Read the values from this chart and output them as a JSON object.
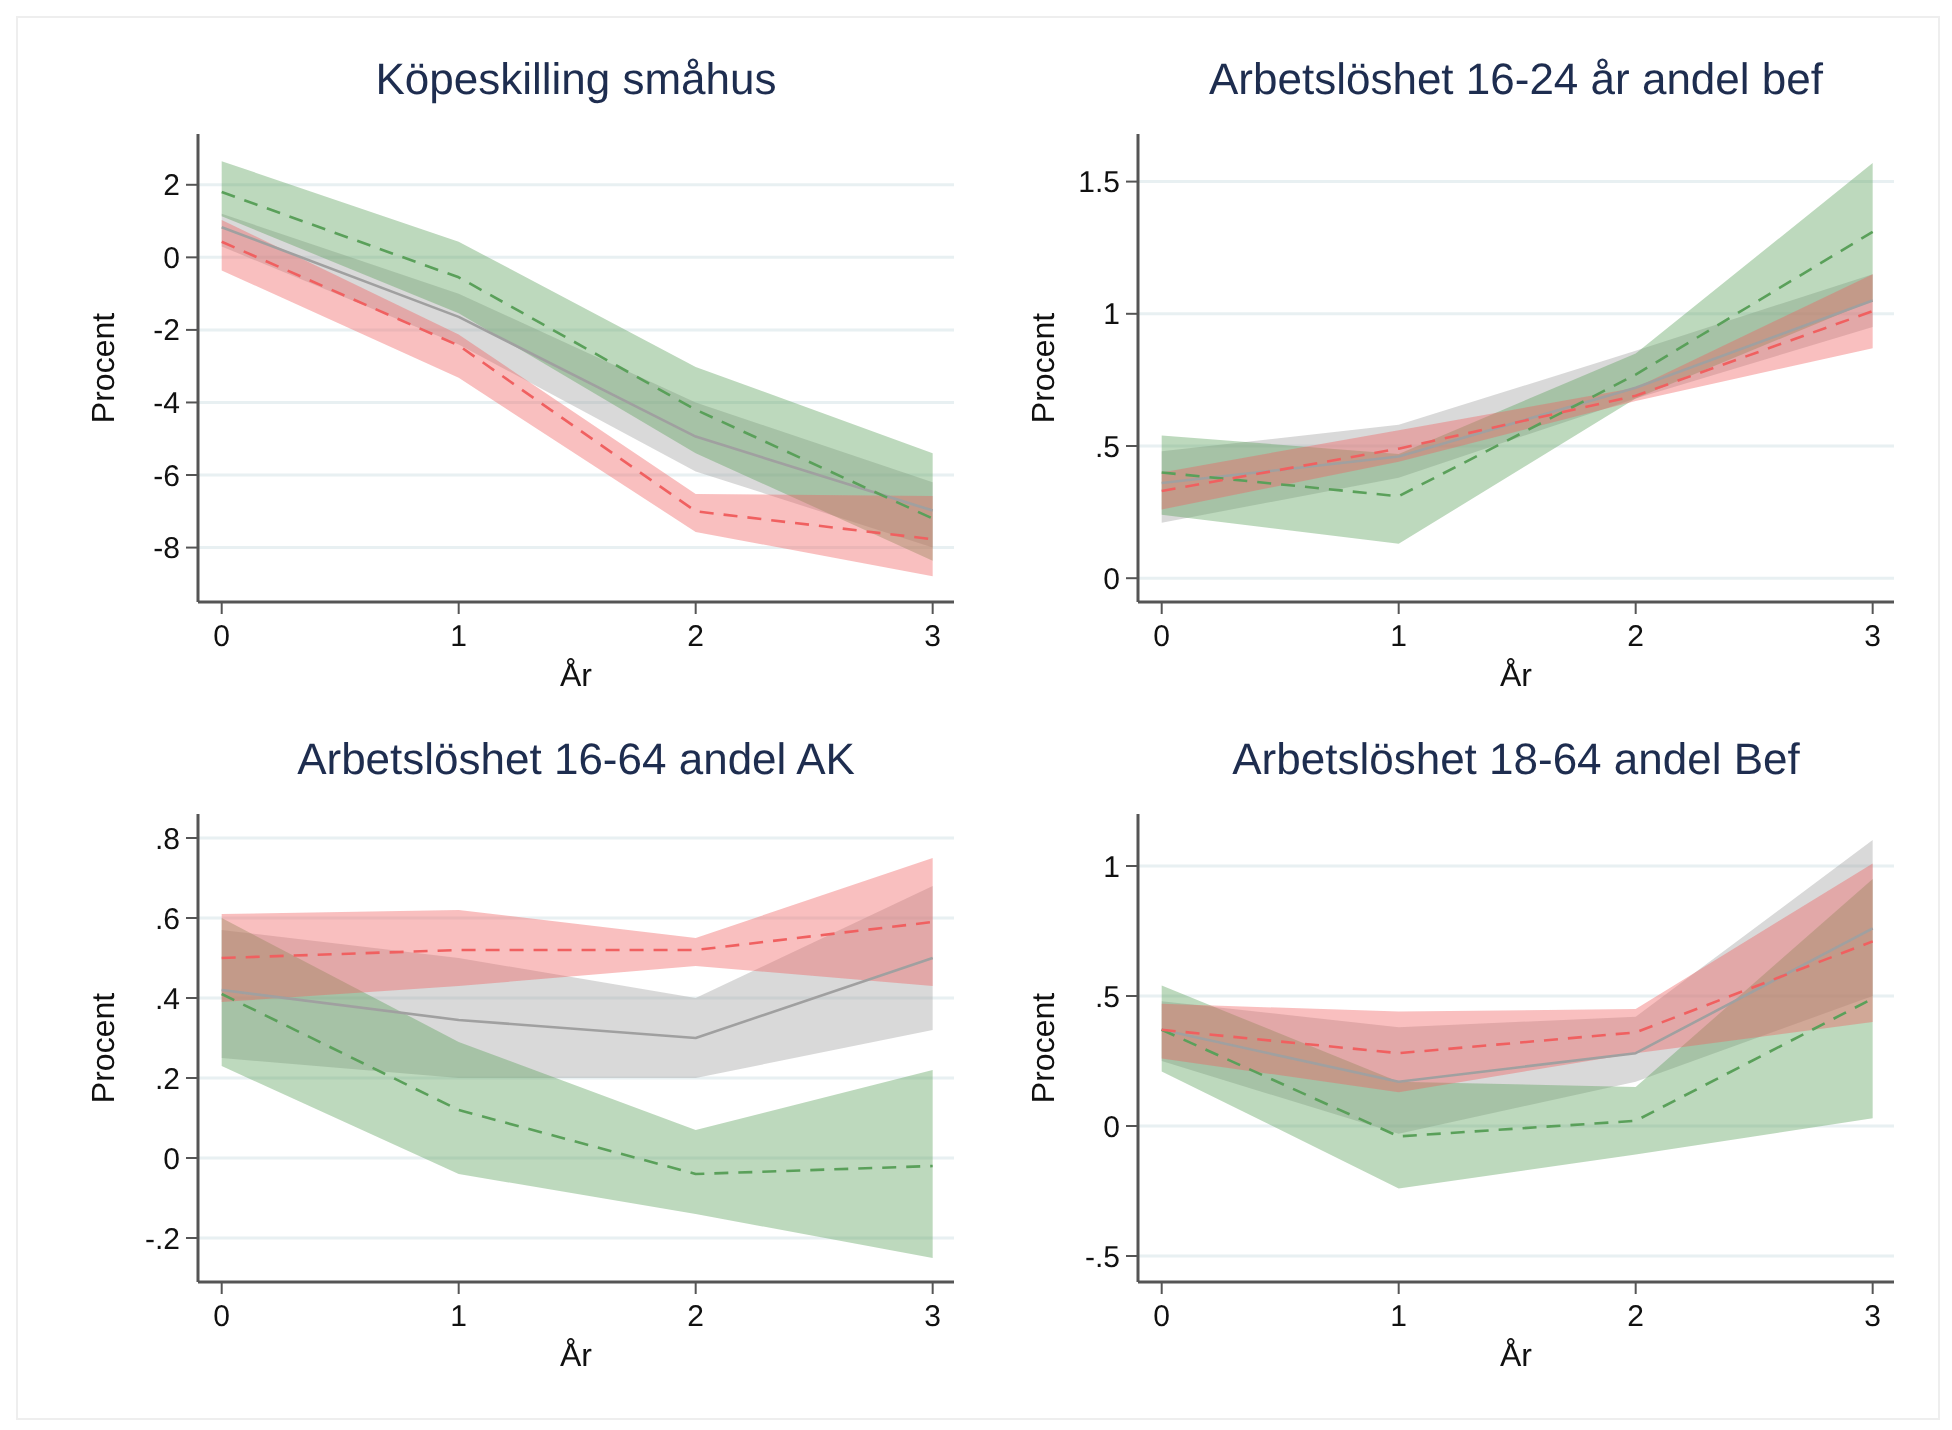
{
  "chart_data": [
    {
      "type": "line",
      "title": "Köpeskilling småhus",
      "xlabel": "År",
      "ylabel": "Procent",
      "x": [
        0,
        1,
        2,
        3
      ],
      "xlim": [
        -0.1,
        3.09
      ],
      "xticks": [
        0,
        1,
        2,
        3
      ],
      "ylim": [
        -9.5,
        3.4
      ],
      "yticks": [
        {
          "value": -8,
          "label": "-8"
        },
        {
          "value": -6,
          "label": "-6"
        },
        {
          "value": -4,
          "label": "-4"
        },
        {
          "value": -2,
          "label": "-2"
        },
        0,
        2
      ],
      "grid": "y",
      "series": [
        {
          "color": "#a0a0a0",
          "line_style": "solid",
          "values": [
            0.83,
            -1.64,
            -4.94,
            -6.98
          ],
          "lower": [
            0.3,
            -2.4,
            -5.9,
            -8.0
          ],
          "upper": [
            1.2,
            -1.0,
            -4.0,
            -6.2
          ]
        },
        {
          "color": "#5aa05a",
          "line_style": "dashed",
          "values": [
            1.8,
            -0.55,
            -4.2,
            -7.2
          ],
          "lower": [
            1.13,
            -1.54,
            -5.4,
            -8.36
          ],
          "upper": [
            2.65,
            0.43,
            -3.02,
            -5.4
          ]
        },
        {
          "color": "#f06060",
          "line_style": "dashed",
          "values": [
            0.43,
            -2.43,
            -7.0,
            -7.77
          ],
          "lower": [
            -0.36,
            -3.32,
            -7.57,
            -8.79
          ],
          "upper": [
            1.03,
            -2.13,
            -6.52,
            -6.58
          ]
        }
      ]
    },
    {
      "type": "line",
      "title": "Arbetslöshet 16-24 år andel bef",
      "xlabel": "År",
      "ylabel": "Procent",
      "x": [
        0,
        1,
        2,
        3
      ],
      "xlim": [
        -0.1,
        3.09
      ],
      "xticks": [
        0,
        1,
        2,
        3
      ],
      "ylim": [
        -0.09,
        1.68
      ],
      "yticks": [
        0,
        {
          "value": 0.5,
          "label": ".5"
        },
        1,
        1.5
      ],
      "grid": "y",
      "series": [
        {
          "color": "#a0a0a0",
          "line_style": "solid",
          "values": [
            0.36,
            0.46,
            0.72,
            1.05
          ],
          "lower": [
            0.21,
            0.38,
            0.68,
            0.95
          ],
          "upper": [
            0.48,
            0.58,
            0.86,
            1.15
          ]
        },
        {
          "color": "#5aa05a",
          "line_style": "dashed",
          "values": [
            0.4,
            0.31,
            0.77,
            1.31
          ],
          "lower": [
            0.24,
            0.13,
            0.68,
            1.05
          ],
          "upper": [
            0.54,
            0.47,
            0.85,
            1.57
          ]
        },
        {
          "color": "#f06060",
          "line_style": "dashed",
          "values": [
            0.33,
            0.49,
            0.69,
            1.01
          ],
          "lower": [
            0.26,
            0.44,
            0.67,
            0.87
          ],
          "upper": [
            0.4,
            0.56,
            0.72,
            1.15
          ]
        }
      ]
    },
    {
      "type": "line",
      "title": "Arbetslöshet 16-64 andel AK",
      "xlabel": "År",
      "ylabel": "Procent",
      "x": [
        0,
        1,
        2,
        3
      ],
      "xlim": [
        -0.1,
        3.09
      ],
      "xticks": [
        0,
        1,
        2,
        3
      ],
      "ylim": [
        -0.31,
        0.86
      ],
      "yticks": [
        {
          "value": -0.2,
          "label": "-.2"
        },
        0,
        {
          "value": 0.2,
          "label": ".2"
        },
        {
          "value": 0.4,
          "label": ".4"
        },
        {
          "value": 0.6,
          "label": ".6"
        },
        {
          "value": 0.8,
          "label": ".8"
        }
      ],
      "grid": "y",
      "series": [
        {
          "color": "#a0a0a0",
          "line_style": "solid",
          "values": [
            0.42,
            0.345,
            0.3,
            0.5
          ],
          "lower": [
            0.25,
            0.2,
            0.2,
            0.32
          ],
          "upper": [
            0.57,
            0.5,
            0.4,
            0.68
          ]
        },
        {
          "color": "#5aa05a",
          "line_style": "dashed",
          "values": [
            0.41,
            0.12,
            -0.04,
            -0.02
          ],
          "lower": [
            0.23,
            -0.04,
            -0.14,
            -0.25
          ],
          "upper": [
            0.6,
            0.29,
            0.07,
            0.22
          ]
        },
        {
          "color": "#f06060",
          "line_style": "dashed",
          "values": [
            0.5,
            0.52,
            0.52,
            0.59
          ],
          "lower": [
            0.39,
            0.43,
            0.48,
            0.43
          ],
          "upper": [
            0.61,
            0.62,
            0.55,
            0.75
          ]
        }
      ]
    },
    {
      "type": "line",
      "title": "Arbetslöshet 18-64 andel Bef",
      "xlabel": "År",
      "ylabel": "Procent",
      "x": [
        0,
        1,
        2,
        3
      ],
      "xlim": [
        -0.1,
        3.09
      ],
      "xticks": [
        0,
        1,
        2,
        3
      ],
      "ylim": [
        -0.6,
        1.2
      ],
      "yticks": [
        {
          "value": -0.5,
          "label": "-.5"
        },
        0,
        {
          "value": 0.5,
          "label": ".5"
        },
        1
      ],
      "grid": "y",
      "series": [
        {
          "color": "#a0a0a0",
          "line_style": "solid",
          "values": [
            0.37,
            0.17,
            0.28,
            0.76
          ],
          "lower": [
            0.25,
            -0.03,
            0.17,
            0.5
          ],
          "upper": [
            0.48,
            0.38,
            0.42,
            1.1
          ]
        },
        {
          "color": "#5aa05a",
          "line_style": "dashed",
          "values": [
            0.37,
            -0.04,
            0.02,
            0.49
          ],
          "lower": [
            0.21,
            -0.24,
            -0.11,
            0.03
          ],
          "upper": [
            0.54,
            0.17,
            0.15,
            0.95
          ]
        },
        {
          "color": "#f06060",
          "line_style": "dashed",
          "values": [
            0.37,
            0.28,
            0.36,
            0.71
          ],
          "lower": [
            0.26,
            0.13,
            0.28,
            0.4
          ],
          "upper": [
            0.47,
            0.44,
            0.45,
            1.01
          ]
        }
      ]
    }
  ]
}
